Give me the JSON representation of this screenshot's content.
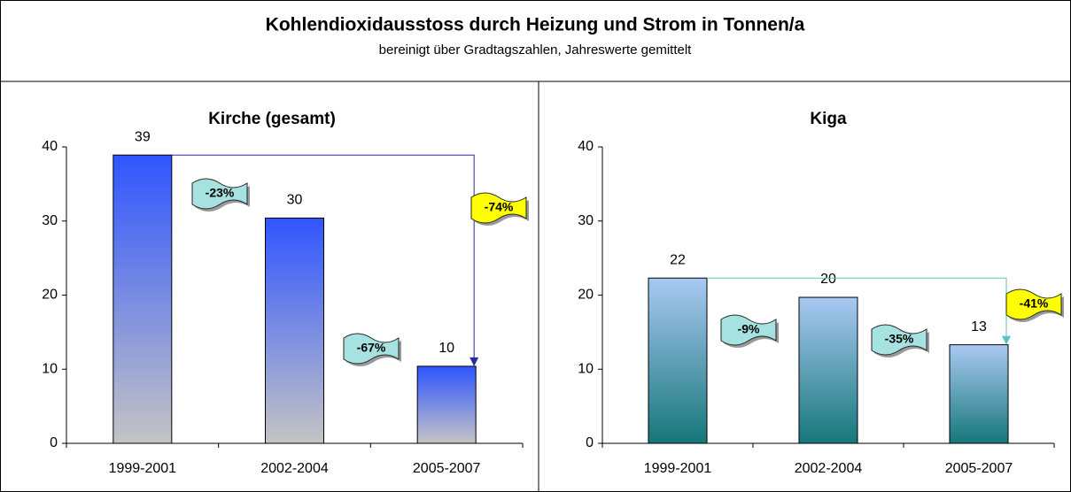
{
  "title": "Kohlendioxidausstoss durch Heizung und Strom in Tonnen/a",
  "subtitle": "bereinigt über Gradtagszahlen, Jahreswerte gemittelt",
  "chart_data": [
    {
      "type": "bar",
      "title": "Kirche (gesamt)",
      "categories": [
        "1999-2001",
        "2002-2004",
        "2005-2007"
      ],
      "values": [
        38.9,
        30.4,
        10.4
      ],
      "value_labels": [
        "39",
        "30",
        "10"
      ],
      "gradient": [
        "#2f55ff",
        "#c4c4c4"
      ],
      "reference_color": "#2a2a9a",
      "ylim": [
        0,
        40
      ],
      "yticks": [
        0,
        10,
        20,
        30,
        40
      ],
      "annotations": [
        "-23%",
        "-67%",
        "-74%"
      ],
      "annotation_colors": [
        "#a6e3e0",
        "#a6e3e0",
        "#ffff00"
      ]
    },
    {
      "type": "bar",
      "title": "Kiga",
      "categories": [
        "1999-2001",
        "2002-2004",
        "2005-2007"
      ],
      "values": [
        22.3,
        19.7,
        13.3
      ],
      "value_labels": [
        "22",
        "20",
        "13"
      ],
      "gradient": [
        "#a9c9f2",
        "#16777a"
      ],
      "reference_color": "#5fc2c2",
      "ylim": [
        0,
        40
      ],
      "yticks": [
        0,
        10,
        20,
        30,
        40
      ],
      "annotations": [
        "-9%",
        "-35%",
        "-41%"
      ],
      "annotation_colors": [
        "#a6e3e0",
        "#a6e3e0",
        "#ffff00"
      ]
    }
  ]
}
